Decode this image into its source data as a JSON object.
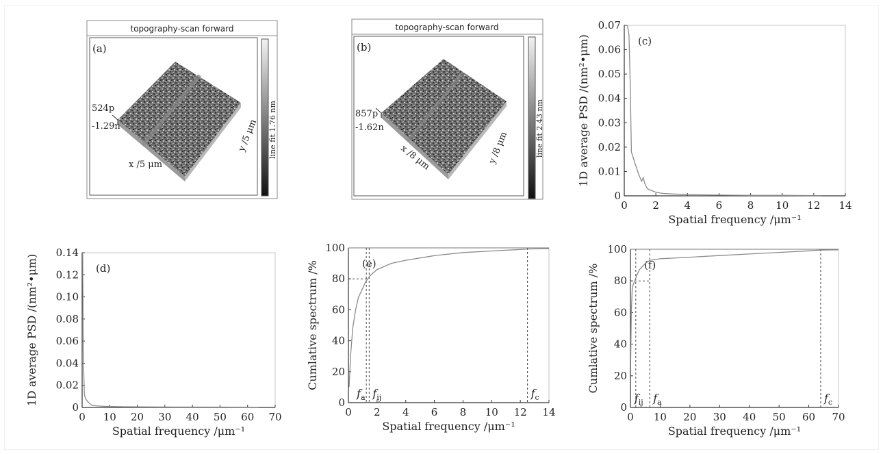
{
  "afm_panels": [
    {
      "id": "a",
      "title": "topography-scan forward",
      "panel_label": "(a)",
      "z_max": "524p",
      "z_min": "-1.29n",
      "x_label": "x /5 μm",
      "y_label": "y /5 μm",
      "colorbar_label": "line fit 1.76 nm"
    },
    {
      "id": "b",
      "title": "topography-scan forward",
      "panel_label": "(b)",
      "z_max": "857p",
      "z_min": "-1.62n",
      "x_label": "x /8 μm",
      "y_label": "y /8 μm",
      "colorbar_label": "line fit 2.43 nm"
    }
  ],
  "chart_data": [
    {
      "id": "c",
      "type": "line",
      "panel_label": "(c)",
      "xlabel": "Spatial frequency /μm⁻¹",
      "ylabel": "1D average PSD /(nm²•μm)",
      "xlim": [
        0,
        14
      ],
      "ylim": [
        0,
        0.07
      ],
      "xticks": [
        "0",
        "2",
        "4",
        "6",
        "8",
        "10",
        "12",
        "14"
      ],
      "yticks": [
        "0",
        "0.01",
        "0.02",
        "0.03",
        "0.04",
        "0.05",
        "0.06",
        "0.07"
      ],
      "series": [
        {
          "x": [
            0.2,
            0.3,
            0.38,
            0.45,
            0.55,
            0.7,
            0.9,
            1.1,
            1.2,
            1.3,
            1.45,
            1.6,
            1.8,
            2.0,
            2.4,
            3.0,
            4.0,
            6.0,
            8.0,
            10.0,
            12.0,
            12.5
          ],
          "y": [
            0.07,
            0.066,
            0.045,
            0.018,
            0.016,
            0.013,
            0.009,
            0.006,
            0.0075,
            0.005,
            0.003,
            0.0025,
            0.002,
            0.0015,
            0.001,
            0.0008,
            0.0005,
            0.0003,
            0.0002,
            0.0002,
            0.0001,
            0.0001
          ]
        }
      ],
      "grid": false
    },
    {
      "id": "d",
      "type": "line",
      "panel_label": "(d)",
      "xlabel": "Spatial frequency /μm⁻¹",
      "ylabel": "1D average PSD /(nm²•μm)",
      "xlim": [
        0,
        70
      ],
      "ylim": [
        0,
        0.14
      ],
      "xticks": [
        "0",
        "10",
        "20",
        "30",
        "40",
        "50",
        "60",
        "70"
      ],
      "yticks": [
        "0",
        "0.02",
        "0.04",
        "0.06",
        "0.08",
        "0.10",
        "0.12",
        "0.14"
      ],
      "series": [
        {
          "x": [
            0.2,
            0.4,
            0.8,
            1.2,
            1.8,
            2.5,
            3.5,
            5,
            8,
            15,
            30,
            50,
            64
          ],
          "y": [
            0.14,
            0.05,
            0.012,
            0.008,
            0.006,
            0.004,
            0.002,
            0.0015,
            0.001,
            0.0006,
            0.0004,
            0.0003,
            0.0002
          ]
        }
      ],
      "grid": false
    },
    {
      "id": "e",
      "type": "line",
      "panel_label": "(e)",
      "xlabel": "Spatial frequency /μm⁻¹",
      "ylabel": "Cumlative spectrum /%",
      "xlim": [
        0,
        14
      ],
      "ylim": [
        0,
        100
      ],
      "xticks": [
        "0",
        "2",
        "4",
        "6",
        "8",
        "10",
        "12",
        "14"
      ],
      "yticks": [
        "0",
        "20",
        "40",
        "60",
        "80",
        "100"
      ],
      "series": [
        {
          "x": [
            0.05,
            0.15,
            0.3,
            0.5,
            0.7,
            1.0,
            1.2,
            1.35,
            1.5,
            2.0,
            3.0,
            4.0,
            6.0,
            8.0,
            10.0,
            12.0,
            12.5,
            14.0
          ],
          "y": [
            10,
            30,
            48,
            60,
            68,
            74,
            78,
            80,
            82,
            86,
            90,
            92,
            95,
            97,
            98,
            99,
            99.3,
            99.5
          ]
        }
      ],
      "markers": [
        {
          "label": "f",
          "sub": "a",
          "x": 1.25
        },
        {
          "label": "f",
          "sub": "ij",
          "x": 1.45
        },
        {
          "label": "f",
          "sub": "c",
          "x": 12.5
        }
      ],
      "h_marker_y": 80,
      "grid": false
    },
    {
      "id": "f",
      "type": "line",
      "panel_label": "(f)",
      "xlabel": "Spatial frequency /μm⁻¹",
      "ylabel": "Cumlative spectrum /%",
      "xlim": [
        0,
        70
      ],
      "ylim": [
        0,
        100
      ],
      "xticks": [
        "0",
        "10",
        "20",
        "30",
        "40",
        "50",
        "60",
        "70"
      ],
      "yticks": [
        "0",
        "20",
        "40",
        "60",
        "80",
        "100"
      ],
      "series": [
        {
          "x": [
            0.1,
            0.3,
            0.6,
            1.0,
            1.5,
            2.0,
            3.0,
            5.0,
            6.5,
            10,
            20,
            30,
            40,
            50,
            60,
            64,
            70
          ],
          "y": [
            30,
            60,
            75,
            78,
            80,
            83,
            87,
            91,
            93,
            94,
            95,
            96,
            97,
            98,
            99,
            99.5,
            99.6
          ]
        }
      ],
      "markers": [
        {
          "label": "f",
          "sub": "ij",
          "x": 1.8
        },
        {
          "label": "f",
          "sub": "a",
          "x": 6.5
        },
        {
          "label": "f",
          "sub": "c",
          "x": 64
        }
      ],
      "h_marker_y": 80,
      "grid": false
    }
  ]
}
